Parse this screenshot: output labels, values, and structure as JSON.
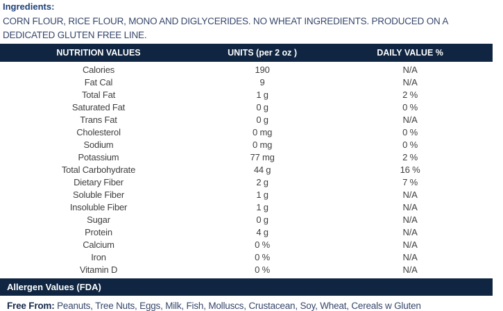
{
  "ingredients": {
    "heading": "Ingredients:",
    "text": "CORN FLOUR, RICE FLOUR, MONO AND DIGLYCERIDES. NO WHEAT INGREDIENTS. PRODUCED ON A DEDICATED GLUTEN FREE LINE."
  },
  "nutrition_table": {
    "columns": [
      "NUTRITION VALUES",
      "UNITS (per 2 oz )",
      "DAILY VALUE %"
    ],
    "rows": [
      [
        "Calories",
        "190",
        "N/A"
      ],
      [
        "Fat Cal",
        "9",
        "N/A"
      ],
      [
        "Total Fat",
        "1 g",
        "2 %"
      ],
      [
        "Saturated Fat",
        "0 g",
        "0 %"
      ],
      [
        "Trans Fat",
        "0 g",
        "N/A"
      ],
      [
        "Cholesterol",
        "0 mg",
        "0 %"
      ],
      [
        "Sodium",
        "0 mg",
        "0 %"
      ],
      [
        "Potassium",
        "77 mg",
        "2 %"
      ],
      [
        "Total Carbohydrate",
        "44 g",
        "16 %"
      ],
      [
        "Dietary Fiber",
        "2 g",
        "7 %"
      ],
      [
        "Soluble Fiber",
        "1 g",
        "N/A"
      ],
      [
        "Insoluble Fiber",
        "1 g",
        "N/A"
      ],
      [
        "Sugar",
        "0 g",
        "N/A"
      ],
      [
        "Protein",
        "4 g",
        "N/A"
      ],
      [
        "Calcium",
        "0 %",
        "N/A"
      ],
      [
        "Iron",
        "0 %",
        "N/A"
      ],
      [
        "Vitamin D",
        "0 %",
        "N/A"
      ]
    ]
  },
  "allergen": {
    "heading": "Allergen Values (FDA)",
    "free_from_label": "Free From:",
    "free_from_text": "Peanuts, Tree Nuts, Eggs, Milk, Fish, Molluscs, Crustacean, Soy, Wheat, Cereals w Gluten"
  },
  "colors": {
    "bar_navy": "#0f2541",
    "heading_blue": "#1d4178",
    "body_text": "#36466b",
    "row_text": "#3f3f3f"
  }
}
